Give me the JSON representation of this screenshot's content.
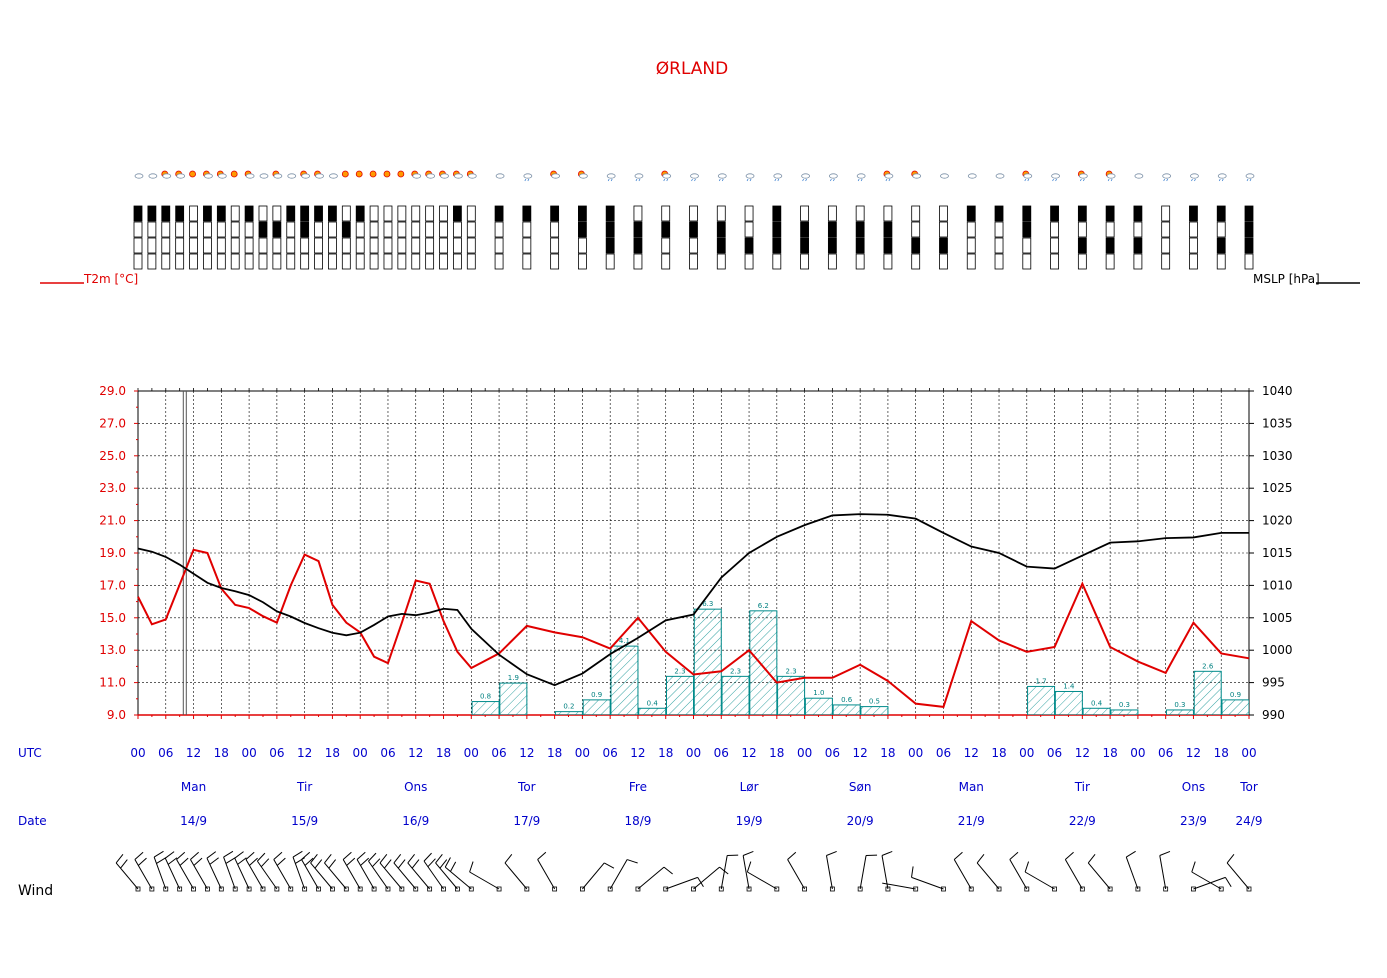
{
  "title": "ØRLAND",
  "colors": {
    "temperature": "#e00000",
    "pressure": "#000000",
    "precip": "#008b8b",
    "labels": "#0000cc"
  },
  "labels": {
    "t2m": "T2m [°C]",
    "mslp": "MSLP [hPa]",
    "utc": "UTC",
    "date": "Date",
    "wind": "Wind"
  },
  "axes": {
    "temp_ticks": [
      "29.0",
      "27.0",
      "25.0",
      "23.0",
      "21.0",
      "19.0",
      "17.0",
      "15.0",
      "13.0",
      "11.0",
      "9.0"
    ],
    "temp_range": [
      9,
      29
    ],
    "pressure_ticks": [
      "1040",
      "1035",
      "1030",
      "1025",
      "1020",
      "1015",
      "1010",
      "1005",
      "1000",
      "995",
      "990"
    ],
    "pressure_range": [
      990,
      1040
    ],
    "x_range_hours": [
      0,
      240
    ],
    "now_marker_hour": 10
  },
  "utc_ticks": [
    "00",
    "06",
    "12",
    "18",
    "00",
    "06",
    "12",
    "18",
    "00",
    "06",
    "12",
    "18",
    "00",
    "06",
    "12",
    "18",
    "00",
    "06",
    "12",
    "18",
    "00",
    "06",
    "12",
    "18",
    "00",
    "06",
    "12",
    "18",
    "00",
    "06",
    "12",
    "18",
    "00",
    "06",
    "12",
    "18",
    "00",
    "06",
    "12",
    "18",
    "00"
  ],
  "days": [
    {
      "name": "Man",
      "date": "14/9",
      "hour": 12
    },
    {
      "name": "Tir",
      "date": "15/9",
      "hour": 36
    },
    {
      "name": "Ons",
      "date": "16/9",
      "hour": 60
    },
    {
      "name": "Tor",
      "date": "17/9",
      "hour": 84
    },
    {
      "name": "Fre",
      "date": "18/9",
      "hour": 108
    },
    {
      "name": "Lør",
      "date": "19/9",
      "hour": 132
    },
    {
      "name": "Søn",
      "date": "20/9",
      "hour": 156
    },
    {
      "name": "Man",
      "date": "21/9",
      "hour": 180
    },
    {
      "name": "Tir",
      "date": "22/9",
      "hour": 204
    },
    {
      "name": "Ons",
      "date": "23/9",
      "hour": 228
    },
    {
      "name": "Tor",
      "date": "24/9",
      "hour": 240
    }
  ],
  "chart_data": {
    "type": "line",
    "title": "ØRLAND",
    "x_unit": "hours since 14/9 00 UTC",
    "series": [
      {
        "name": "T2m [°C]",
        "x": [
          0,
          3,
          6,
          12,
          15,
          18,
          21,
          24,
          27,
          30,
          33,
          36,
          39,
          42,
          45,
          48,
          51,
          54,
          57,
          60,
          63,
          66,
          69,
          72,
          78,
          84,
          90,
          96,
          102,
          108,
          114,
          120,
          126,
          132,
          138,
          144,
          150,
          156,
          162,
          168,
          174,
          180,
          186,
          192,
          198,
          204,
          210,
          216,
          222,
          228,
          234,
          240
        ],
        "y": [
          16.3,
          14.6,
          14.9,
          19.2,
          19.0,
          16.8,
          15.8,
          15.6,
          15.1,
          14.7,
          17.0,
          18.9,
          18.5,
          15.8,
          14.7,
          14.1,
          12.6,
          12.2,
          14.7,
          17.3,
          17.1,
          14.8,
          12.9,
          11.9,
          12.8,
          14.5,
          14.1,
          13.8,
          13.1,
          15.0,
          12.9,
          11.5,
          11.7,
          13.0,
          11.0,
          11.3,
          11.3,
          12.1,
          11.1,
          9.7,
          9.5,
          14.8,
          13.6,
          12.9,
          13.2,
          17.1,
          13.2,
          12.3,
          11.6,
          14.7,
          12.8,
          12.5
        ]
      },
      {
        "name": "MSLP [hPa]",
        "x": [
          0,
          3,
          6,
          9,
          12,
          15,
          18,
          21,
          24,
          27,
          30,
          33,
          36,
          39,
          42,
          45,
          48,
          51,
          54,
          57,
          60,
          63,
          66,
          69,
          72,
          78,
          84,
          90,
          96,
          102,
          108,
          114,
          120,
          126,
          132,
          138,
          144,
          150,
          156,
          162,
          168,
          174,
          180,
          186,
          192,
          198,
          204,
          210,
          216,
          222,
          228,
          234,
          240
        ],
        "y": [
          1015.7,
          1015.2,
          1014.4,
          1013.2,
          1011.8,
          1010.4,
          1009.6,
          1009.1,
          1008.5,
          1007.4,
          1006.0,
          1005.2,
          1004.2,
          1003.4,
          1002.7,
          1002.3,
          1002.7,
          1003.9,
          1005.2,
          1005.6,
          1005.4,
          1005.8,
          1006.4,
          1006.2,
          1003.3,
          999.3,
          996.3,
          994.6,
          996.4,
          999.4,
          1001.9,
          1004.6,
          1005.5,
          1011.2,
          1015.0,
          1017.5,
          1019.3,
          1020.8,
          1021.0,
          1020.9,
          1020.3,
          1018.1,
          1016.0,
          1015.0,
          1012.9,
          1012.6,
          1014.6,
          1016.6,
          1016.8,
          1017.3,
          1017.4,
          1018.1,
          1018.1
        ]
      },
      {
        "name": "Precipitation",
        "type": "bar",
        "x": [
          78,
          84,
          96,
          102,
          108,
          114,
          120,
          126,
          132,
          138,
          144,
          150,
          156,
          162,
          168,
          198,
          204,
          210,
          216,
          228,
          234,
          240
        ],
        "values": [
          0.8,
          1.9,
          0.2,
          0.9,
          4.1,
          0.4,
          2.3,
          6.3,
          2.3,
          6.2,
          2.3,
          1.0,
          0.6,
          0.5,
          0,
          1.7,
          1.4,
          0.4,
          0.3,
          0.3,
          2.6,
          0.9
        ],
        "labels": [
          "0.8",
          "1.9",
          "0.2",
          "0.9",
          "4.1",
          "0.4",
          "2.3",
          "6.3",
          "2.3",
          "6.2",
          "2.3",
          "1.0",
          "0.6",
          "0.5",
          "",
          "1.7",
          "1.4",
          "0.4",
          "0.3",
          "0.3",
          "2.6",
          "0.9"
        ]
      }
    ],
    "grid": true
  },
  "cloud_cover": {
    "x": [
      0,
      3,
      6,
      9,
      12,
      15,
      18,
      21,
      24,
      27,
      30,
      33,
      36,
      39,
      42,
      45,
      48,
      51,
      54,
      57,
      60,
      63,
      66,
      69,
      72,
      78,
      84,
      90,
      96,
      102,
      108,
      114,
      120,
      126,
      132,
      138,
      144,
      150,
      156,
      162,
      168,
      174,
      180,
      186,
      192,
      198,
      204,
      210,
      216,
      222,
      228,
      234,
      240
    ],
    "levels": [
      [
        1,
        1,
        1,
        1,
        0,
        1,
        1,
        0,
        1,
        0,
        0,
        1,
        1,
        1,
        1,
        0,
        1,
        0,
        0,
        0,
        0,
        0,
        0,
        1,
        0,
        1,
        1,
        1,
        1,
        1,
        0,
        0,
        0,
        0,
        0,
        1,
        0,
        0,
        0,
        0,
        0,
        0,
        1,
        1,
        1,
        1,
        1,
        1,
        1,
        0,
        1,
        1,
        1
      ],
      [
        0,
        0,
        0,
        0,
        0,
        0,
        0,
        0,
        0,
        1,
        1,
        0,
        1,
        0,
        0,
        1,
        0,
        0,
        0,
        0,
        0,
        0,
        0,
        0,
        0,
        0,
        0,
        0,
        1,
        1,
        1,
        1,
        1,
        1,
        0,
        1,
        1,
        1,
        1,
        1,
        0,
        0,
        0,
        0,
        1,
        0,
        0,
        0,
        0,
        0,
        0,
        0,
        1
      ],
      [
        0,
        0,
        0,
        0,
        0,
        0,
        0,
        0,
        0,
        0,
        0,
        0,
        0,
        0,
        0,
        0,
        0,
        0,
        0,
        0,
        0,
        0,
        0,
        0,
        0,
        0,
        0,
        0,
        0,
        1,
        1,
        0,
        0,
        1,
        1,
        1,
        1,
        1,
        1,
        1,
        1,
        1,
        0,
        0,
        0,
        0,
        1,
        1,
        1,
        0,
        0,
        1,
        1
      ],
      [
        0,
        0,
        0,
        0,
        0,
        0,
        0,
        0,
        0,
        0,
        0,
        0,
        0,
        0,
        0,
        0,
        0,
        0,
        0,
        0,
        0,
        0,
        0,
        0,
        0,
        0,
        0,
        0,
        0,
        0,
        0,
        0,
        0,
        0,
        0,
        0,
        0,
        0,
        0,
        0,
        0,
        0,
        0,
        0,
        0,
        0,
        0,
        0,
        0,
        0,
        0,
        0,
        0
      ]
    ]
  },
  "weather_symbols": {
    "x": [
      0,
      3,
      6,
      9,
      12,
      15,
      18,
      21,
      24,
      27,
      30,
      33,
      36,
      39,
      42,
      45,
      48,
      51,
      54,
      57,
      60,
      63,
      66,
      69,
      72,
      78,
      84,
      90,
      96,
      102,
      108,
      114,
      120,
      126,
      132,
      138,
      144,
      150,
      156,
      162,
      168,
      174,
      180,
      186,
      192,
      198,
      204,
      210,
      216,
      222,
      228,
      234,
      240
    ],
    "icons": [
      "cloud-icon",
      "cloud-icon",
      "partly-sunny-icon",
      "partly-sunny-icon",
      "sun-icon",
      "partly-sunny-icon",
      "partly-sunny-icon",
      "sun-icon",
      "partly-sunny-icon",
      "cloud-icon",
      "partly-sunny-icon",
      "cloud-icon",
      "partly-sunny-icon",
      "partly-sunny-icon",
      "cloud-icon",
      "sun-icon",
      "sun-icon",
      "sun-icon",
      "sun-icon",
      "sun-icon",
      "partly-sunny-icon",
      "partly-sunny-icon",
      "partly-sunny-icon",
      "partly-sunny-icon",
      "partly-sunny-icon",
      "cloud-icon",
      "rain-cloud-icon",
      "partly-sunny-icon",
      "partly-sunny-icon",
      "rain-cloud-icon",
      "rain-cloud-icon",
      "rain-sun-icon",
      "rain-cloud-icon",
      "rain-cloud-icon",
      "rain-cloud-icon",
      "rain-cloud-icon",
      "rain-cloud-icon",
      "rain-cloud-icon",
      "rain-cloud-icon",
      "rain-sun-icon",
      "partly-sunny-icon",
      "cloud-icon",
      "cloud-icon",
      "cloud-icon",
      "rain-sun-icon",
      "rain-cloud-icon",
      "rain-sun-icon",
      "rain-sun-icon",
      "cloud-icon",
      "rain-cloud-icon",
      "rain-cloud-icon",
      "rain-cloud-icon",
      "rain-cloud-icon"
    ]
  },
  "wind_barbs": {
    "x": [
      0,
      3,
      6,
      9,
      12,
      15,
      18,
      21,
      24,
      27,
      30,
      33,
      36,
      39,
      42,
      45,
      48,
      51,
      54,
      57,
      60,
      63,
      66,
      69,
      72,
      78,
      84,
      90,
      96,
      102,
      108,
      114,
      120,
      126,
      132,
      138,
      144,
      150,
      156,
      162,
      168,
      174,
      180,
      186,
      192,
      198,
      204,
      210,
      216,
      222,
      228,
      234,
      240
    ],
    "from_deg": [
      320,
      330,
      340,
      335,
      330,
      330,
      335,
      340,
      335,
      330,
      325,
      330,
      340,
      330,
      320,
      320,
      330,
      330,
      325,
      320,
      320,
      320,
      325,
      320,
      310,
      300,
      320,
      330,
      40,
      30,
      50,
      70,
      50,
      10,
      350,
      300,
      330,
      350,
      10,
      350,
      280,
      290,
      330,
      320,
      330,
      300,
      330,
      320,
      340,
      350,
      70,
      300,
      320
    ],
    "barbs": [
      2,
      2,
      2,
      2,
      2,
      2,
      2,
      2,
      2,
      2,
      2,
      2,
      2,
      2,
      2,
      2,
      2,
      2,
      2,
      2,
      2,
      2,
      2,
      2,
      2,
      1,
      1,
      1,
      1,
      1,
      1,
      1,
      1,
      1,
      1,
      1,
      1,
      1,
      1,
      1,
      0,
      1,
      1,
      1,
      1,
      1,
      1,
      1,
      1,
      1,
      1,
      1,
      1
    ]
  }
}
